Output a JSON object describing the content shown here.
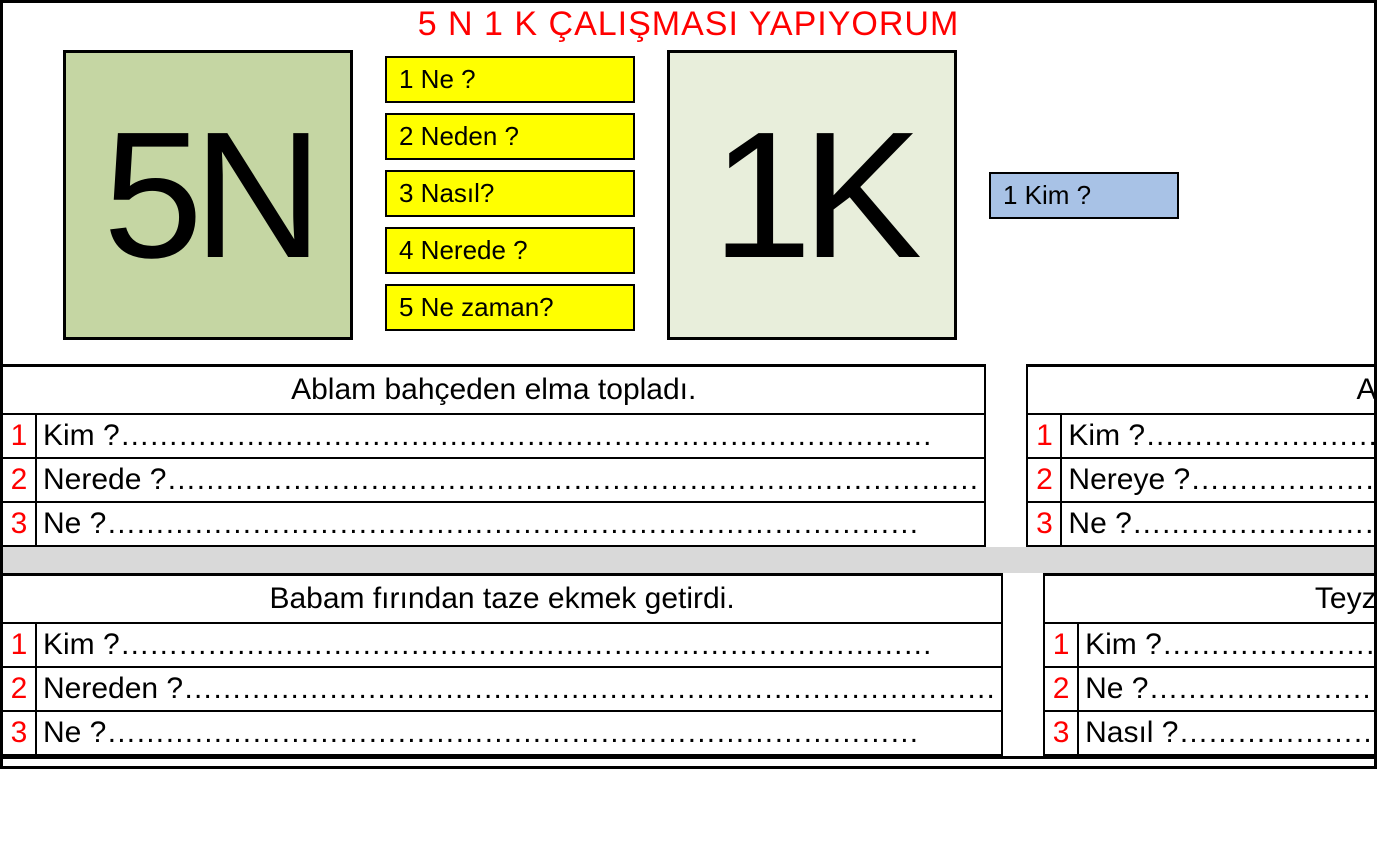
{
  "title": "5 N 1 K ÇALIŞMASI YAPIYORUM",
  "hero": {
    "box5n": "5N",
    "box1k": "1K",
    "n_questions": [
      "1  Ne ?",
      "2  Neden ?",
      "3  Nasıl?",
      "4  Nerede ?",
      "5  Ne zaman?"
    ],
    "k_question": "1  Kim ?",
    "colors": {
      "box5n_bg": "#c5d6a3",
      "box1k_bg": "#e8eedb",
      "n_bg": "#ffff00",
      "k_bg": "#a8c2e6",
      "title_color": "#ff0000",
      "num_color": "#ff0000",
      "border": "#000000",
      "spacer_bg": "#d9d9d9"
    }
  },
  "blocks": [
    {
      "sentence": "Ablam bahçeden elma topladı.",
      "rows": [
        {
          "num": "1",
          "q": "Kim ?"
        },
        {
          "num": "2",
          "q": "Nerede ?"
        },
        {
          "num": "3",
          "q": "Ne ?"
        }
      ]
    },
    {
      "sentence": "Annem eve patates aldı.",
      "rows": [
        {
          "num": "1",
          "q": "Kim ?"
        },
        {
          "num": "2",
          "q": "Nereye ?"
        },
        {
          "num": "3",
          "q": "Ne ?"
        }
      ]
    },
    {
      "sentence": "Babam fırından taze ekmek getirdi.",
      "rows": [
        {
          "num": "1",
          "q": "Kim ?"
        },
        {
          "num": "2",
          "q": "Nereden ?"
        },
        {
          "num": "3",
          "q": "Ne ?"
        }
      ]
    },
    {
      "sentence": "Teyzem nefis kurabiler yapmış.",
      "rows": [
        {
          "num": "1",
          "q": "Kim ?"
        },
        {
          "num": "2",
          "q": "Ne ?"
        },
        {
          "num": "3",
          "q": "Nasıl ?"
        }
      ]
    }
  ],
  "dots": "…………………………………………………………………………"
}
